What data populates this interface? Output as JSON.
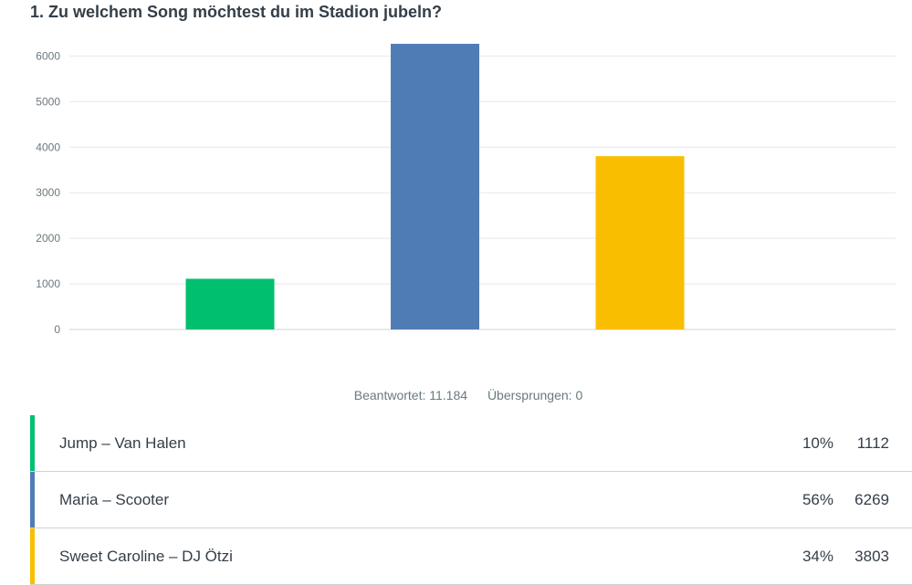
{
  "question": {
    "title": "1. Zu welchem Song möchtest du im Stadion jubeln?"
  },
  "stats": {
    "answered": "Beantwortet: 11.184",
    "skipped": "Übersprungen: 0"
  },
  "answers": [
    {
      "label": "Jump – Van Halen",
      "percent": "10%",
      "count": "1112",
      "color": "#00bf6f"
    },
    {
      "label": "Maria – Scooter",
      "percent": "56%",
      "count": "6269",
      "color": "#507cb6"
    },
    {
      "label": "Sweet Caroline – DJ Ötzi",
      "percent": "34%",
      "count": "3803",
      "color": "#f9be00"
    }
  ],
  "chart_data": {
    "type": "bar",
    "categories": [
      "Jump – Van Halen",
      "Maria – Scooter",
      "Sweet Caroline – DJ Ötzi"
    ],
    "values": [
      1112,
      6269,
      3803
    ],
    "colors": [
      "#00bf6f",
      "#507cb6",
      "#f9be00"
    ],
    "yticks": [
      0,
      1000,
      2000,
      3000,
      4000,
      5000,
      6000
    ],
    "ylim": [
      0,
      6269
    ],
    "grid": true,
    "xlabel": "",
    "ylabel": ""
  }
}
